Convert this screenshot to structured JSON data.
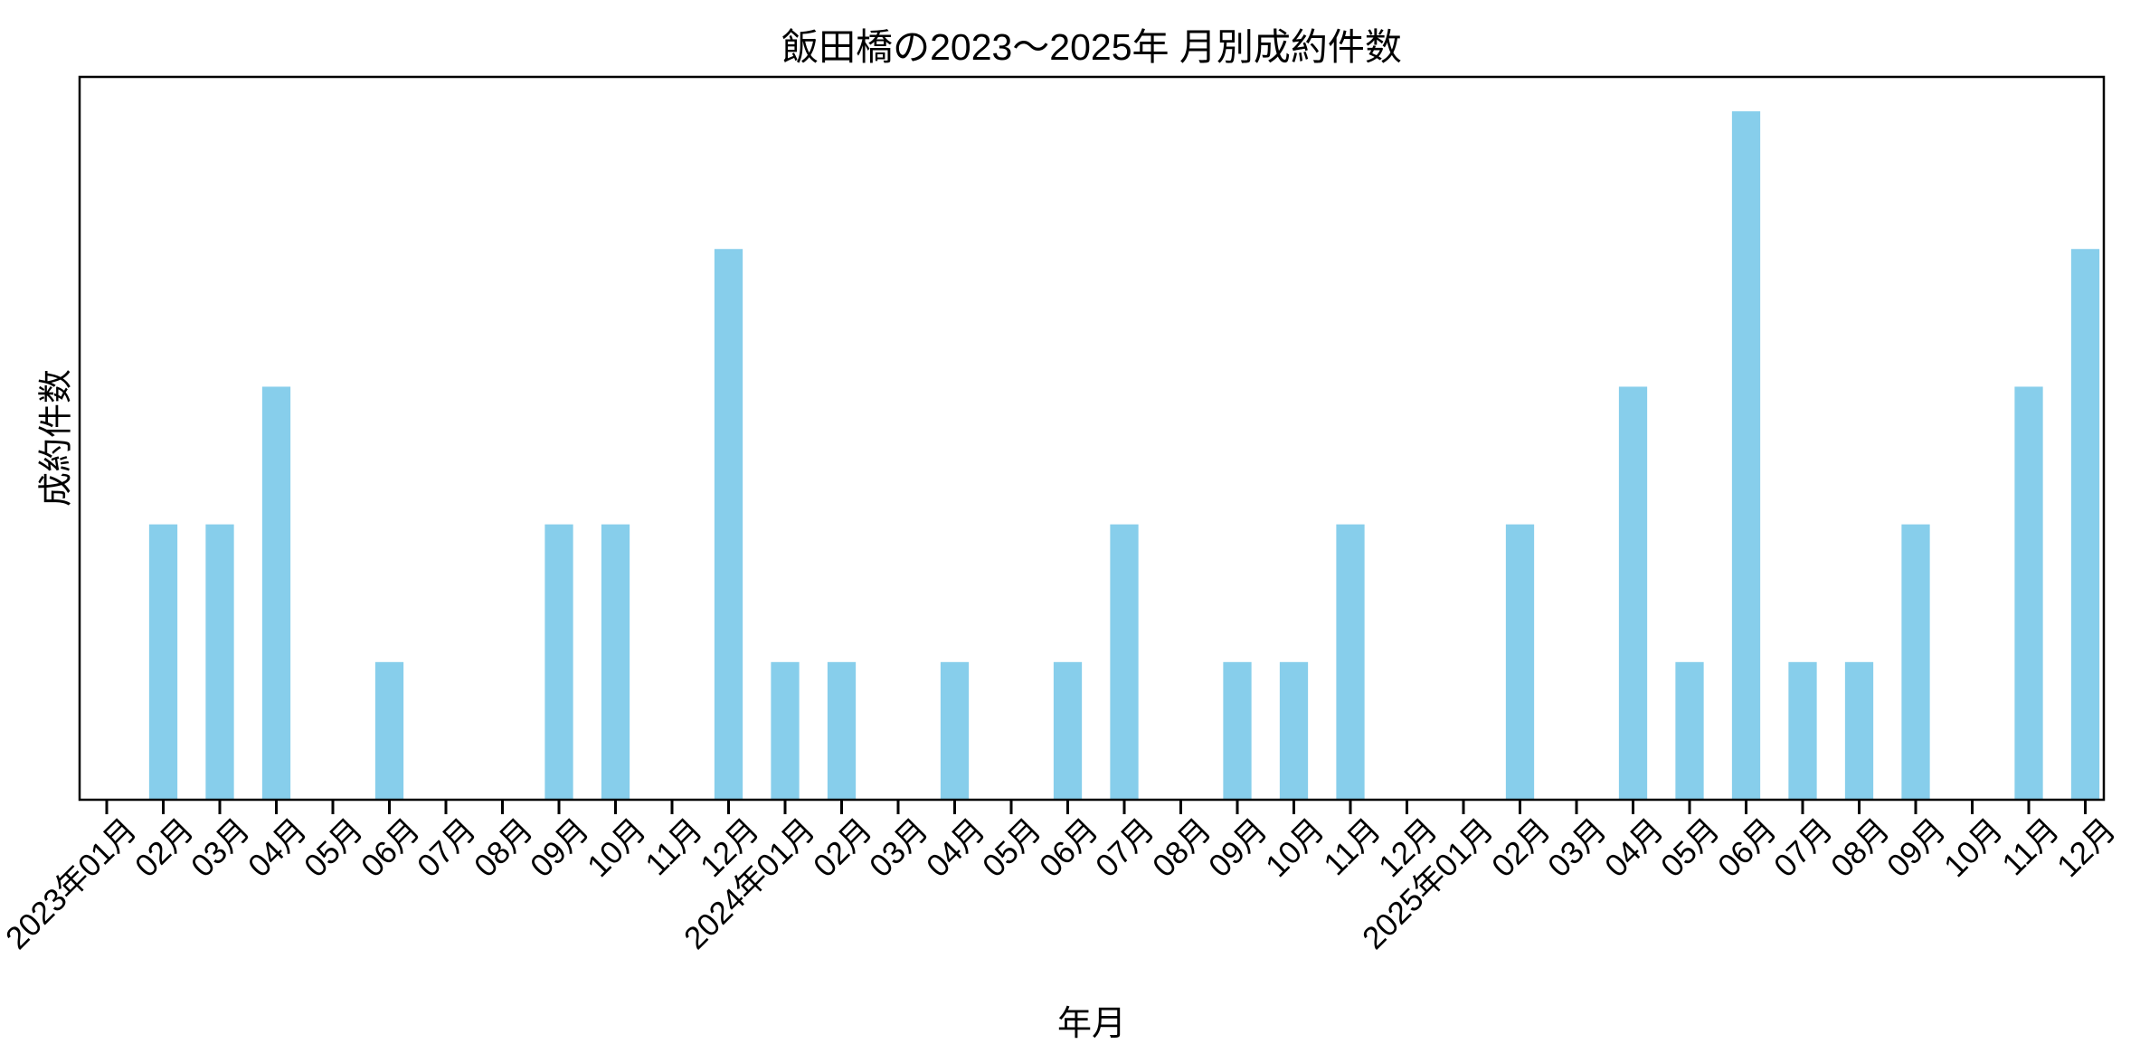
{
  "chart_data": {
    "type": "bar",
    "title": "飯田橋の2023〜2025年 月別成約件数",
    "xlabel": "年月",
    "ylabel": "成約件数",
    "categories": [
      "2023年01月",
      "02月",
      "03月",
      "04月",
      "05月",
      "06月",
      "07月",
      "08月",
      "09月",
      "10月",
      "11月",
      "12月",
      "2024年01月",
      "02月",
      "03月",
      "04月",
      "05月",
      "06月",
      "07月",
      "08月",
      "09月",
      "10月",
      "11月",
      "12月",
      "2025年01月",
      "02月",
      "03月",
      "04月",
      "05月",
      "06月",
      "07月",
      "08月",
      "09月",
      "10月",
      "11月",
      "12月"
    ],
    "values": [
      0,
      2,
      2,
      3,
      0,
      1,
      0,
      0,
      2,
      2,
      0,
      4,
      1,
      1,
      0,
      1,
      0,
      1,
      2,
      0,
      1,
      1,
      2,
      0,
      0,
      2,
      0,
      3,
      1,
      5,
      1,
      1,
      2,
      0,
      3,
      4
    ],
    "ylim": [
      0,
      5.25
    ],
    "yticks_labeled": false,
    "grid": false,
    "legend": null,
    "bar_color": "#87CEEB",
    "axis_color": "#000000",
    "bar_width_ratio": 0.5,
    "xtick_label_rotation_deg": 45
  }
}
